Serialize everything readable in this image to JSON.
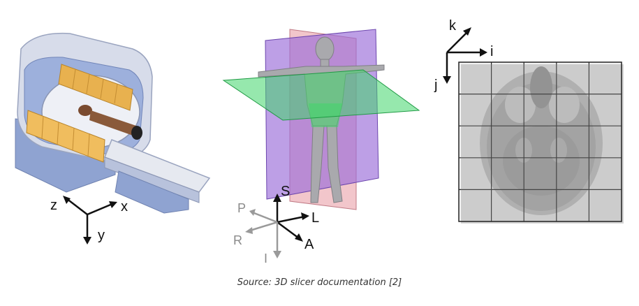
{
  "scanner": {
    "axes": {
      "x": "x",
      "y": "y",
      "z": "z"
    }
  },
  "anatomy": {
    "axes": {
      "S": "S",
      "L": "L",
      "A": "A",
      "P": "P",
      "R": "R",
      "I": "I"
    }
  },
  "slice": {
    "axes": {
      "i": "i",
      "j": "j",
      "k": "k"
    },
    "grid": {
      "rows": 5,
      "cols": 5
    }
  },
  "caption": "Source: 3D slicer documentation [2]",
  "colors": {
    "scanner_body": "#c9d3e6",
    "scanner_blue": "#8fa3d1",
    "coil_orange": "#e8b14f",
    "sagittal_plane": "#9a6bd8",
    "coronal_plane": "#e9a0a8",
    "axial_plane": "#40d66a",
    "grid_line": "#222222"
  }
}
